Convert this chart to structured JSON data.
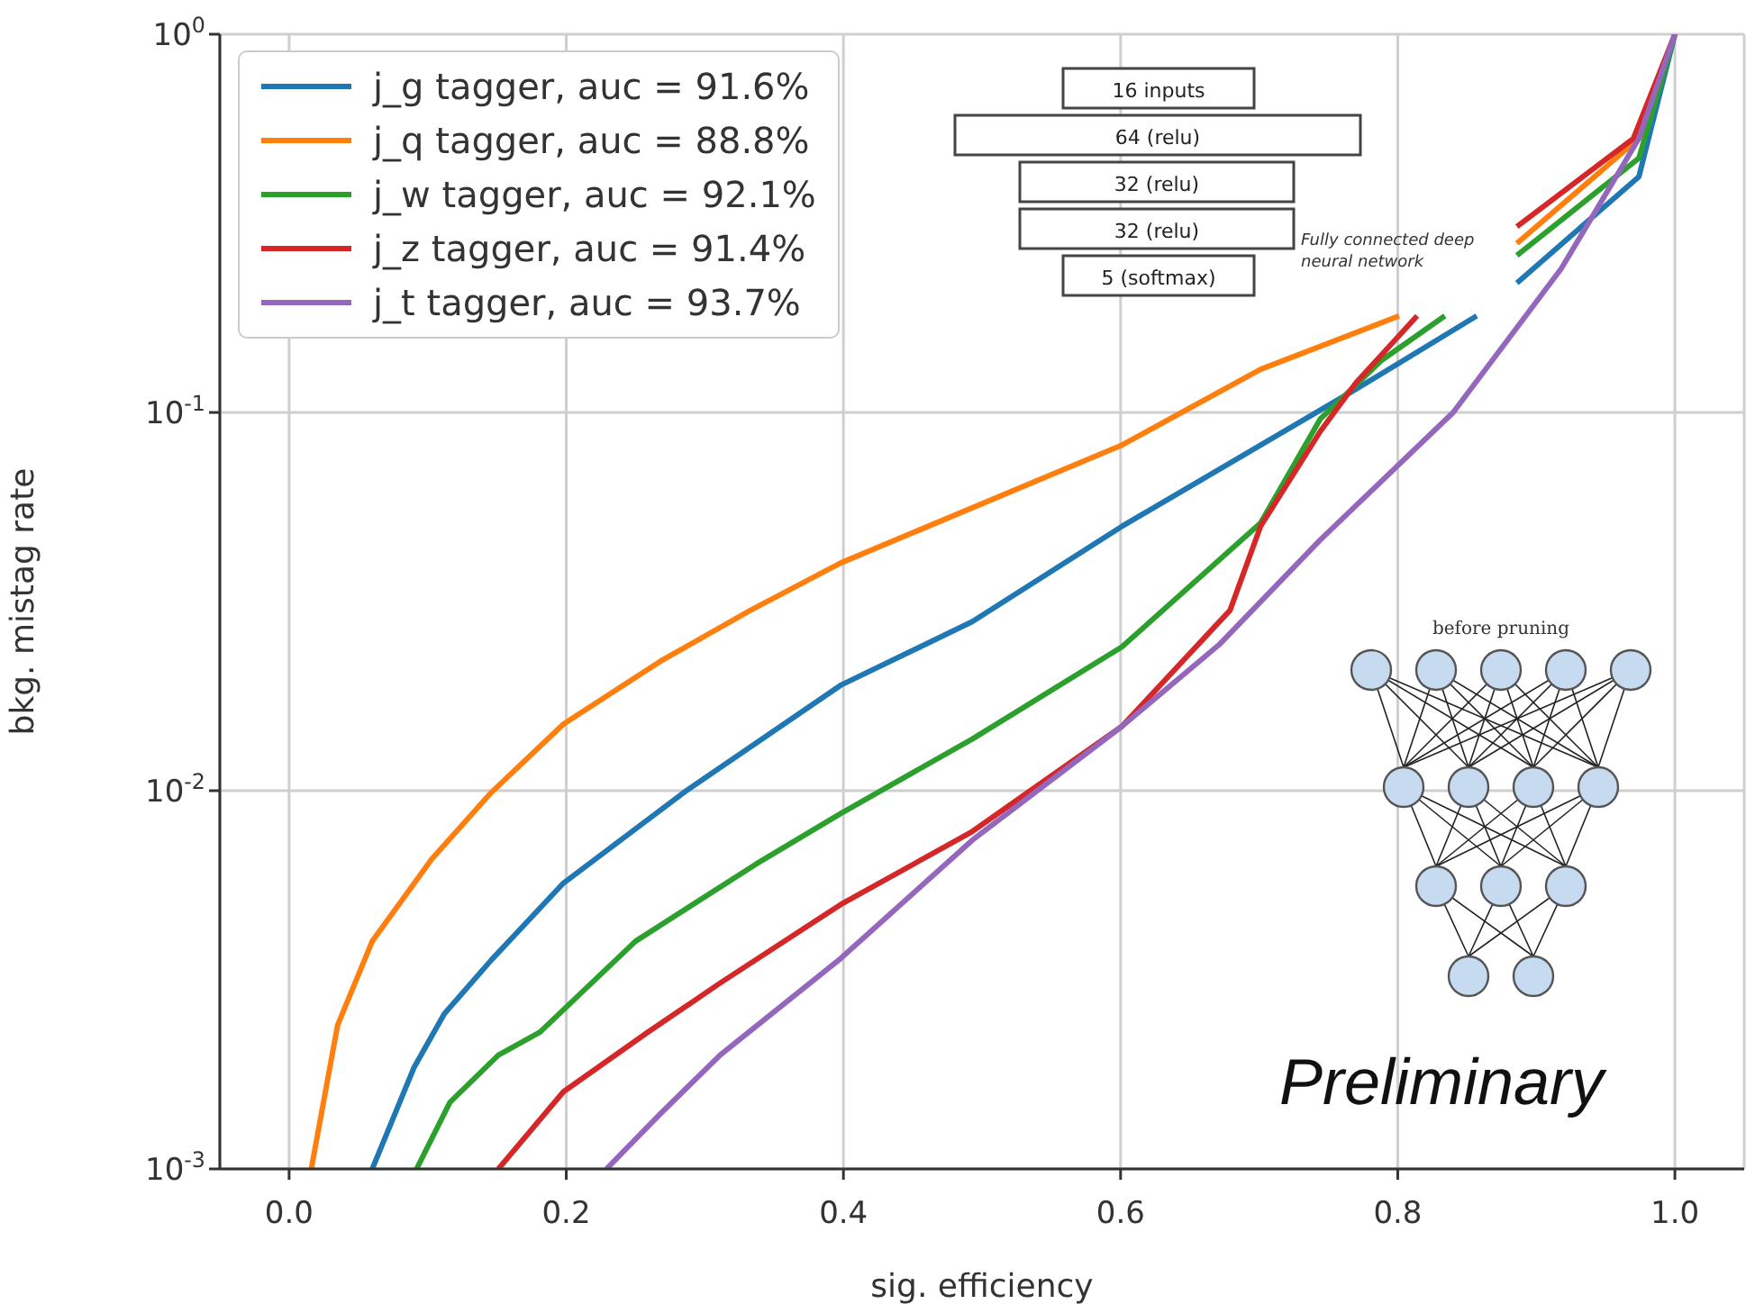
{
  "chart_data": {
    "type": "line",
    "xlabel": "sig. efficiency",
    "ylabel": "bkg. mistag rate",
    "xlim": [
      -0.05,
      1.05
    ],
    "xticks": [
      {
        "value": 0,
        "label": "0.0"
      },
      0.2,
      0.4,
      0.6,
      0.8,
      {
        "value": 1,
        "label": "1.0"
      }
    ],
    "ylim": [
      0.001,
      1
    ],
    "yticks": [
      {
        "value": 0.001,
        "label": "10$^{-3}$"
      },
      {
        "value": 0.01,
        "label": "10$^{-2}$"
      },
      {
        "value": 0.1,
        "label": "10$^{-1}$"
      },
      {
        "value": 1,
        "label": "10$^{0}$"
      }
    ],
    "log": "y",
    "grid": true,
    "legend": "top left",
    "marker": "none",
    "line_style": "solid",
    "series": [
      {
        "name": "j_g tagger, auc = 91.6%",
        "color": "#1f77b4",
        "x": [
          0.06,
          0.09,
          0.112,
          0.146,
          0.198,
          0.285,
          0.398,
          0.493,
          0.601,
          0.766,
          0.857,
          0.87,
          0.886,
          0.974,
          1.0
        ],
        "values": [
          0.001,
          0.00185,
          0.00257,
          0.00357,
          0.0057,
          0.0099,
          0.019,
          0.028,
          0.05,
          0.113,
          0.18,
          null,
          0.22,
          0.42,
          1.0
        ]
      },
      {
        "name": "j_q tagger, auc = 88.8%",
        "color": "#ff7f0e",
        "x": [
          0.016,
          0.035,
          0.06,
          0.103,
          0.146,
          0.198,
          0.268,
          0.333,
          0.398,
          0.601,
          0.701,
          0.801,
          0.84,
          0.886,
          0.974,
          1.0
        ],
        "values": [
          0.001,
          0.0024,
          0.004,
          0.0066,
          0.0099,
          0.015,
          0.022,
          0.03,
          0.04,
          0.082,
          0.13,
          0.18,
          null,
          0.28,
          0.53,
          1.0
        ]
      },
      {
        "name": "j_w tagger, auc = 92.1%",
        "color": "#2ca02c",
        "x": [
          0.092,
          0.116,
          0.151,
          0.181,
          0.25,
          0.337,
          0.398,
          0.493,
          0.601,
          0.701,
          0.744,
          0.788,
          0.834,
          0.86,
          0.886,
          0.974,
          1.0
        ],
        "values": [
          0.001,
          0.0015,
          0.002,
          0.0023,
          0.004,
          0.0064,
          0.0087,
          0.0137,
          0.024,
          0.051,
          0.096,
          0.137,
          0.18,
          null,
          0.26,
          0.47,
          1.0
        ]
      },
      {
        "name": "j_z tagger, auc = 91.4%",
        "color": "#d62728",
        "x": [
          0.151,
          0.198,
          0.259,
          0.311,
          0.398,
          0.493,
          0.601,
          0.679,
          0.701,
          0.744,
          0.77,
          0.814,
          0.85,
          0.886,
          0.97,
          1.0
        ],
        "values": [
          0.001,
          0.0016,
          0.0023,
          0.0031,
          0.005,
          0.0078,
          0.0148,
          0.03,
          0.05,
          0.089,
          0.12,
          0.18,
          null,
          0.31,
          0.53,
          1.0
        ]
      },
      {
        "name": "j_t tagger, auc = 93.7%",
        "color": "#9467bd",
        "x": [
          0.229,
          0.268,
          0.311,
          0.398,
          0.493,
          0.601,
          0.671,
          0.744,
          0.84,
          0.918,
          0.974,
          1.0
        ],
        "values": [
          0.001,
          0.0014,
          0.002,
          0.0036,
          0.0074,
          0.0148,
          0.0243,
          0.046,
          0.1,
          0.24,
          0.53,
          1.0
        ]
      }
    ],
    "annotations": [
      "16 inputs",
      "64 (relu)",
      "32 (relu)",
      "32 (relu)",
      "5 (softmax)",
      "Fully connected deep neural network",
      "before pruning",
      "Preliminary"
    ]
  }
}
